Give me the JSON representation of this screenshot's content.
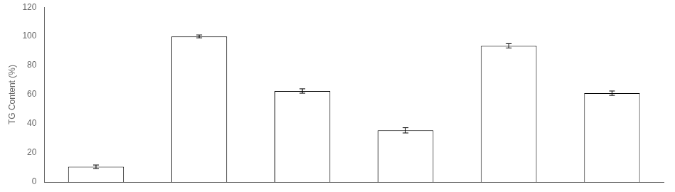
{
  "chart_data": {
    "type": "bar",
    "ylabel": "TG Content (%)",
    "categories": [
      null,
      null,
      null,
      null,
      null,
      null
    ],
    "values": [
      10.5,
      100.0,
      62.5,
      35.5,
      93.5,
      61.0
    ],
    "errors": [
      1.2,
      1.0,
      1.5,
      1.8,
      1.5,
      1.5
    ],
    "color": "white",
    "ylim": [
      0,
      120
    ],
    "yticks": [
      0,
      20,
      40,
      60,
      80,
      100,
      120
    ],
    "grid": false,
    "tick_labels": "y"
  }
}
